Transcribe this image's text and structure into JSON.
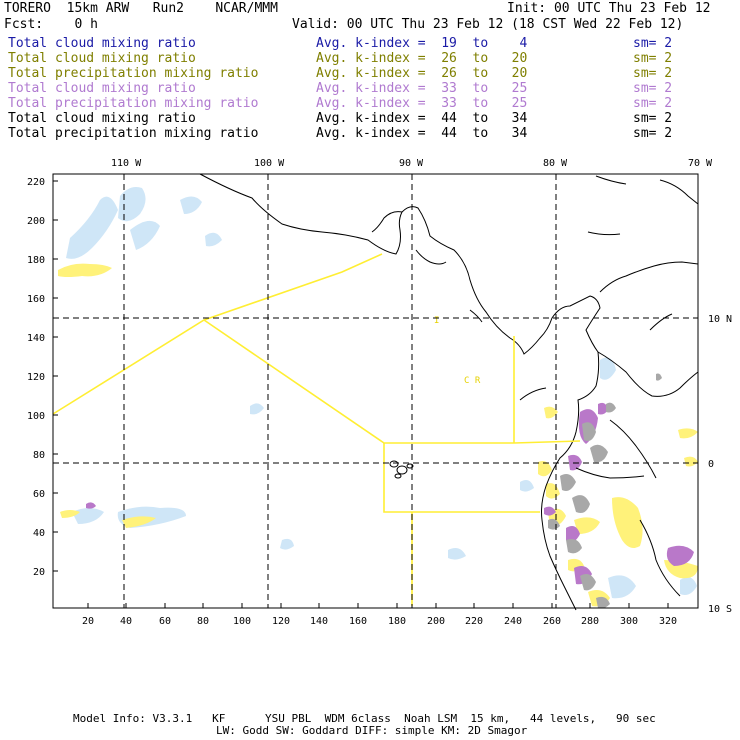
{
  "header": {
    "model": "TORERO  15km ARW   Run2    NCAR/MMM",
    "init": "Init: 00 UTC Thu 23 Feb 12",
    "fcst": "Fcst:    0 h",
    "valid": "Valid: 00 UTC Thu 23 Feb 12 (18 CST Wed 22 Feb 12)"
  },
  "legend": [
    {
      "field": "Total cloud mixing ratio",
      "kindex": "Avg. k-index =  19  to    4",
      "sm": "sm= 2",
      "color": "#1a1aa6"
    },
    {
      "field": "Total cloud mixing ratio",
      "kindex": "Avg. k-index =  26  to   20",
      "sm": "sm= 2",
      "color": "#7f7f00"
    },
    {
      "field": "Total precipitation mixing ratio",
      "kindex": "Avg. k-index =  26  to   20",
      "sm": "sm= 2",
      "color": "#7f7f00"
    },
    {
      "field": "Total cloud mixing ratio",
      "kindex": "Avg. k-index =  33  to   25",
      "sm": "sm= 2",
      "color": "#b07ad0"
    },
    {
      "field": "Total precipitation mixing ratio",
      "kindex": "Avg. k-index =  33  to   25",
      "sm": "sm= 2",
      "color": "#b07ad0"
    },
    {
      "field": "Total cloud mixing ratio",
      "kindex": "Avg. k-index =  44  to   34",
      "sm": "sm= 2",
      "color": "#000000"
    },
    {
      "field": "Total precipitation mixing ratio",
      "kindex": "Avg. k-index =  44  to   34",
      "sm": "sm= 2",
      "color": "#000000"
    }
  ],
  "map": {
    "lon_labels": [
      "110 W",
      "100 W",
      "90 W",
      "80 W",
      "70 W"
    ],
    "lat_labels": [
      "10 N",
      "0",
      "10 S"
    ],
    "y_ticks": [
      "220",
      "200",
      "180",
      "160",
      "140",
      "120",
      "100",
      "80",
      "60",
      "40",
      "20"
    ],
    "x_ticks": [
      "20",
      "40",
      "60",
      "80",
      "100",
      "120",
      "140",
      "160",
      "180",
      "200",
      "220",
      "240",
      "260",
      "280",
      "300",
      "320"
    ],
    "annotation": "C  R",
    "colors": {
      "boundary": "#ffee33",
      "light_cloud": "#cfe6f7",
      "yellow": "#fff27a",
      "purple": "#b978c9",
      "gray": "#a8a8a8",
      "coast": "#000000"
    }
  },
  "footer": {
    "line1": "Model Info: V3.3.1   KF      YSU PBL  WDM 6class  Noah LSM  15 km,   44 levels,   90 sec",
    "line2": "LW: Godd SW: Goddard DIFF: simple KM: 2D Smagor"
  }
}
